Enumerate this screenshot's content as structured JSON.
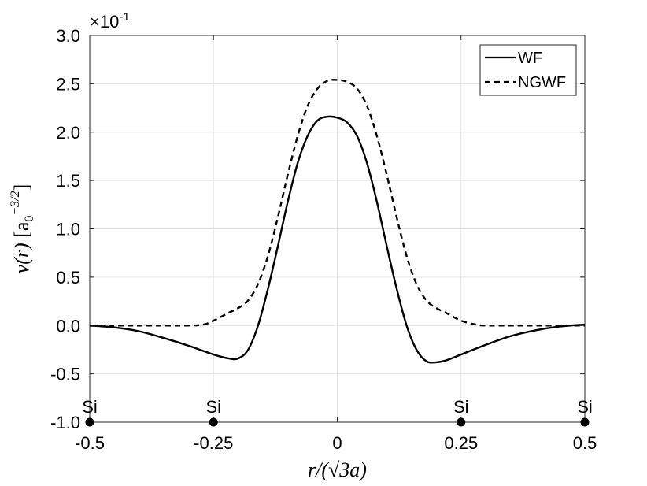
{
  "chart_data": {
    "type": "line",
    "xlabel": "r/(√3a)",
    "ylabel": "ν(r) [a0^−3/2]",
    "ylabel_parts": {
      "symbol": "ν(r)",
      "unit_base": "a",
      "unit_sub": "0",
      "unit_sup": "−3/2"
    },
    "xlim": [
      -0.5,
      0.5
    ],
    "ylim": [
      -1.0,
      3.0
    ],
    "x_ticks": [
      -0.5,
      -0.25,
      0,
      0.25,
      0.5
    ],
    "x_tick_labels": [
      "-0.5",
      "-0.25",
      "0",
      "0.25",
      "0.5"
    ],
    "y_ticks": [
      -1.0,
      -0.5,
      0.0,
      0.5,
      1.0,
      1.5,
      2.0,
      2.5,
      3.0
    ],
    "y_tick_labels": [
      "-1.0",
      "-0.5",
      "0.0",
      "0.5",
      "1.0",
      "1.5",
      "2.0",
      "2.5",
      "3.0"
    ],
    "y_multiplier": {
      "base": "×10",
      "exponent": "-1"
    },
    "grid": true,
    "legend_position": "top-right",
    "series": [
      {
        "name": "WF",
        "style": "solid",
        "color": "#000000",
        "x": [
          -0.5,
          -0.45,
          -0.4,
          -0.35,
          -0.3,
          -0.25,
          -0.22,
          -0.2,
          -0.18,
          -0.16,
          -0.14,
          -0.12,
          -0.1,
          -0.08,
          -0.06,
          -0.04,
          -0.02,
          0,
          0.02,
          0.04,
          0.06,
          0.08,
          0.1,
          0.12,
          0.14,
          0.16,
          0.18,
          0.2,
          0.22,
          0.25,
          0.3,
          0.35,
          0.4,
          0.45,
          0.5
        ],
        "y": [
          0,
          -0.02,
          -0.06,
          -0.13,
          -0.21,
          -0.3,
          -0.34,
          -0.34,
          -0.25,
          0.0,
          0.38,
          0.82,
          1.28,
          1.68,
          1.96,
          2.12,
          2.16,
          2.15,
          2.1,
          1.96,
          1.68,
          1.28,
          0.82,
          0.38,
          0.0,
          -0.25,
          -0.37,
          -0.38,
          -0.36,
          -0.3,
          -0.2,
          -0.11,
          -0.05,
          -0.01,
          0.01
        ]
      },
      {
        "name": "NGWF",
        "style": "dashed",
        "color": "#000000",
        "x": [
          -0.5,
          -0.4,
          -0.35,
          -0.3,
          -0.27,
          -0.25,
          -0.22,
          -0.2,
          -0.18,
          -0.16,
          -0.14,
          -0.12,
          -0.1,
          -0.08,
          -0.06,
          -0.04,
          -0.02,
          0,
          0.02,
          0.04,
          0.06,
          0.08,
          0.1,
          0.12,
          0.14,
          0.16,
          0.18,
          0.2,
          0.22,
          0.25,
          0.28,
          0.3,
          0.35,
          0.4,
          0.5
        ],
        "y": [
          0,
          0,
          0,
          0,
          0.01,
          0.05,
          0.13,
          0.18,
          0.26,
          0.43,
          0.72,
          1.12,
          1.56,
          1.96,
          2.27,
          2.45,
          2.53,
          2.54,
          2.52,
          2.45,
          2.27,
          1.96,
          1.56,
          1.12,
          0.72,
          0.43,
          0.26,
          0.18,
          0.13,
          0.05,
          0.01,
          0,
          0,
          0,
          0
        ]
      }
    ],
    "markers": [
      {
        "label": "Si",
        "x": -0.5,
        "y": -1.0
      },
      {
        "label": "Si",
        "x": -0.25,
        "y": -1.0
      },
      {
        "label": "Si",
        "x": 0.25,
        "y": -1.0
      },
      {
        "label": "Si",
        "x": 0.5,
        "y": -1.0
      }
    ]
  }
}
